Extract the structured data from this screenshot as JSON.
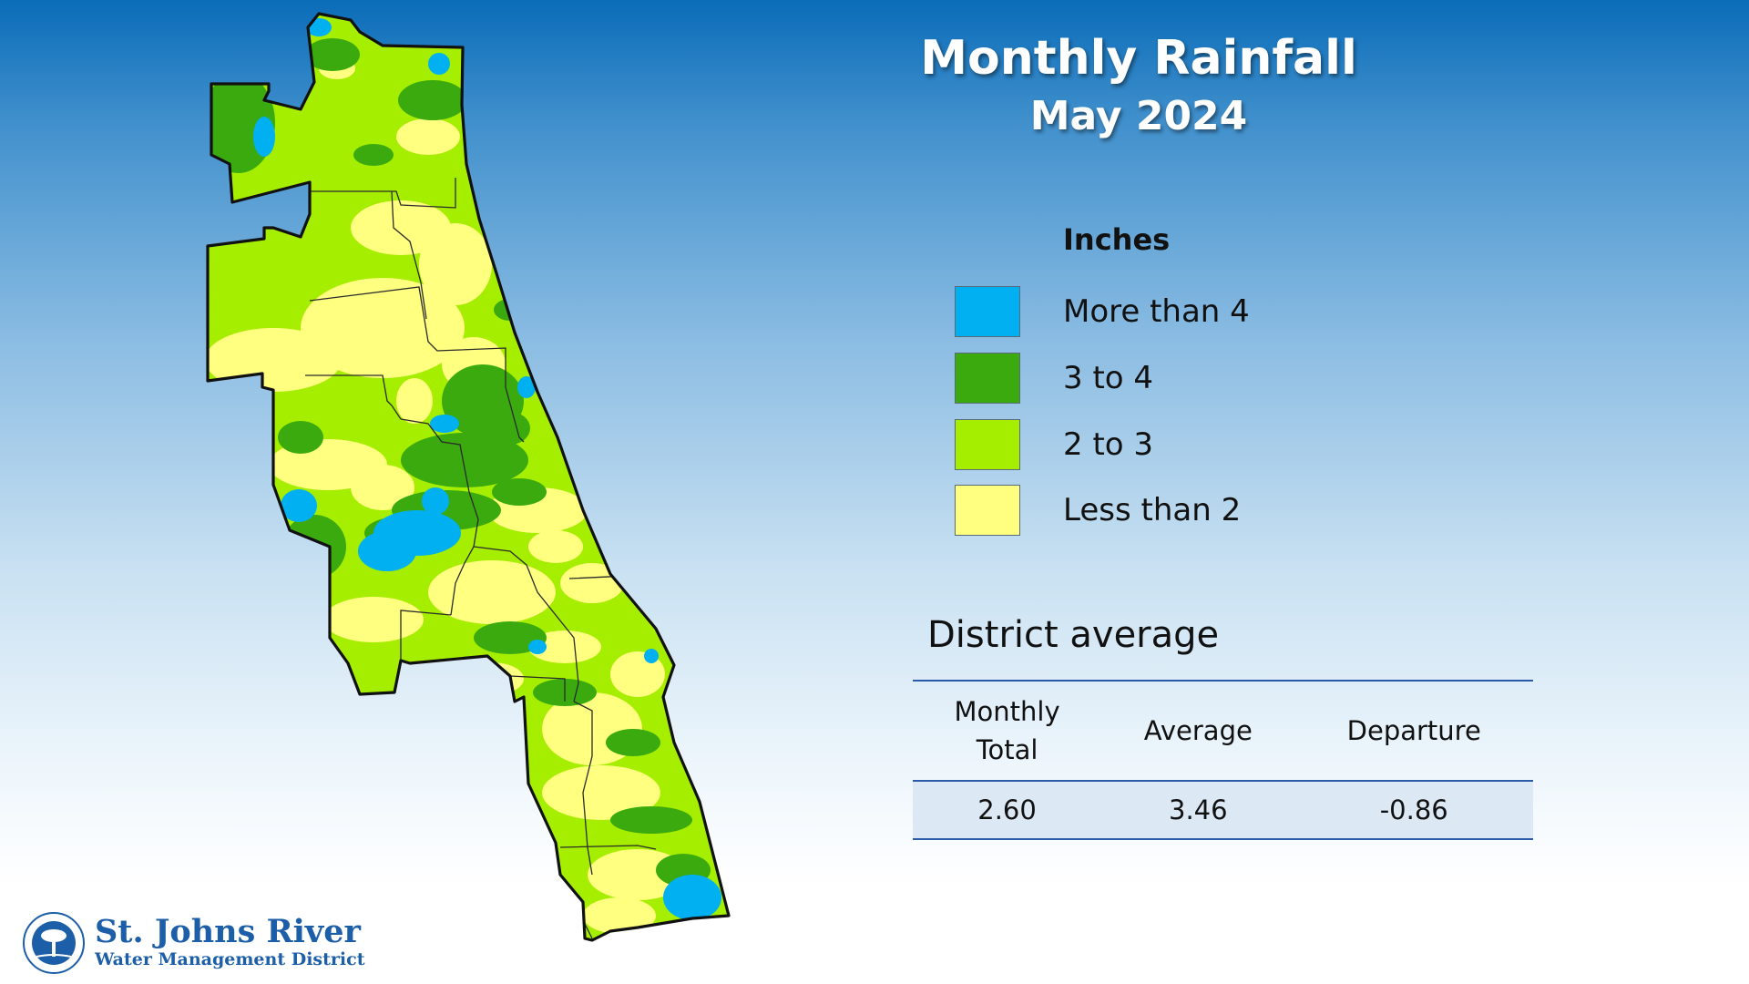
{
  "title": "Monthly Rainfall",
  "subtitle": "May 2024",
  "legend": {
    "title": "Inches",
    "items": [
      {
        "label": "More than 4",
        "color": "#00b0f0"
      },
      {
        "label": "3 to 4",
        "color": "#3aaa0e"
      },
      {
        "label": "2 to 3",
        "color": "#a6ee00"
      },
      {
        "label": "Less than 2",
        "color": "#ffff80"
      }
    ]
  },
  "district_average": {
    "title": "District average",
    "headers": [
      "Monthly Total",
      "Average",
      "Departure"
    ],
    "header_line1": "Monthly",
    "header_line2": "Total",
    "values": [
      "2.60",
      "3.46",
      "-0.86"
    ]
  },
  "organization": {
    "name": "St. Johns River",
    "subtitle": "Water Management District",
    "seal_text": "ST. JOHNS RIVER WATER MANAGEMENT DISTRICT"
  },
  "map": {
    "icon": "district-rainfall-map"
  }
}
